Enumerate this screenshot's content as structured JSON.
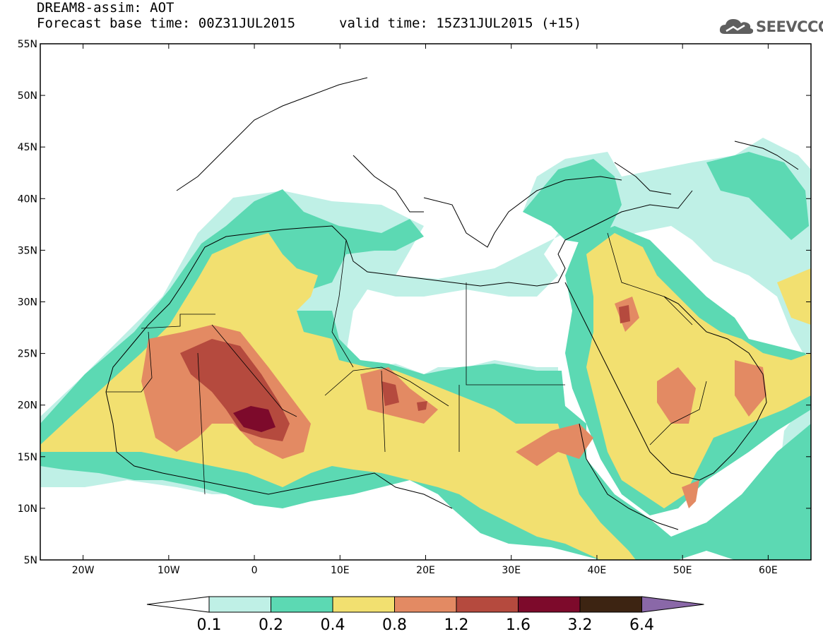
{
  "header": {
    "title": "DREAM8-assim: AOT",
    "base_time": "Forecast base time: 00Z31JUL2015",
    "valid_time": "valid time: 15Z31JUL2015 (+15)",
    "logo_text": "SEEVCCC"
  },
  "map": {
    "lon_range": [
      -25,
      65
    ],
    "lat_range": [
      5,
      55
    ],
    "lat_ticks": [
      {
        "value": 55,
        "label": "55N"
      },
      {
        "value": 50,
        "label": "50N"
      },
      {
        "value": 45,
        "label": "45N"
      },
      {
        "value": 40,
        "label": "40N"
      },
      {
        "value": 35,
        "label": "35N"
      },
      {
        "value": 30,
        "label": "30N"
      },
      {
        "value": 25,
        "label": "25N"
      },
      {
        "value": 20,
        "label": "20N"
      },
      {
        "value": 15,
        "label": "15N"
      },
      {
        "value": 10,
        "label": "10N"
      },
      {
        "value": 5,
        "label": "5N"
      }
    ],
    "lon_ticks": [
      {
        "value": -20,
        "label": "20W"
      },
      {
        "value": -10,
        "label": "10W"
      },
      {
        "value": 0,
        "label": "0"
      },
      {
        "value": 10,
        "label": "10E"
      },
      {
        "value": 20,
        "label": "20E"
      },
      {
        "value": 30,
        "label": "30E"
      },
      {
        "value": 40,
        "label": "40E"
      },
      {
        "value": 50,
        "label": "50E"
      },
      {
        "value": 60,
        "label": "60E"
      }
    ]
  },
  "colorbar": {
    "levels": [
      "0.1",
      "0.2",
      "0.4",
      "0.8",
      "1.2",
      "1.6",
      "3.2",
      "6.4"
    ],
    "colors": [
      "#bff0e6",
      "#5cd9b3",
      "#f2e070",
      "#e38a63",
      "#b54a3e",
      "#7d0a2b",
      "#3d2412",
      "#8a68a8"
    ],
    "below_color": "#ffffff"
  },
  "colors": {
    "c01": "#bff0e6",
    "c02": "#5cd9b3",
    "c04": "#f2e070",
    "c08": "#e38a63",
    "c12": "#b54a3e",
    "c16": "#7d0a2b"
  }
}
